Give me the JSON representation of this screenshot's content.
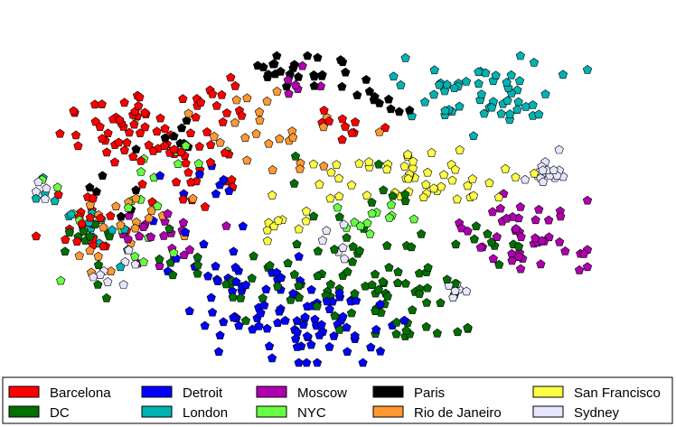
{
  "chart_data": {
    "type": "scatter",
    "marker": "pentagon",
    "grid": false,
    "legend_placement": "bottom",
    "series": [
      {
        "name": "Barcelona",
        "color": "#ff0000",
        "clusters": [
          {
            "cx": 140,
            "cy": 140,
            "sx": 40,
            "sy": 20,
            "n": 45
          },
          {
            "cx": 250,
            "cy": 110,
            "sx": 25,
            "sy": 15,
            "n": 15
          },
          {
            "cx": 200,
            "cy": 190,
            "sx": 40,
            "sy": 25,
            "n": 30
          },
          {
            "cx": 95,
            "cy": 250,
            "sx": 25,
            "sy": 25,
            "n": 20
          },
          {
            "cx": 380,
            "cy": 140,
            "sx": 20,
            "sy": 10,
            "n": 10
          }
        ]
      },
      {
        "name": "DC",
        "color": "#007000",
        "clusters": [
          {
            "cx": 420,
            "cy": 320,
            "sx": 60,
            "sy": 35,
            "n": 80
          },
          {
            "cx": 250,
            "cy": 300,
            "sx": 40,
            "sy": 20,
            "n": 18
          },
          {
            "cx": 100,
            "cy": 270,
            "sx": 20,
            "sy": 25,
            "n": 12
          },
          {
            "cx": 540,
            "cy": 270,
            "sx": 20,
            "sy": 10,
            "n": 8
          },
          {
            "cx": 400,
            "cy": 220,
            "sx": 30,
            "sy": 20,
            "n": 10
          }
        ]
      },
      {
        "name": "Detroit",
        "color": "#0000ff",
        "clusters": [
          {
            "cx": 340,
            "cy": 360,
            "sx": 45,
            "sy": 25,
            "n": 70
          },
          {
            "cx": 270,
            "cy": 310,
            "sx": 40,
            "sy": 20,
            "n": 25
          },
          {
            "cx": 210,
            "cy": 230,
            "sx": 25,
            "sy": 25,
            "n": 12
          }
        ]
      },
      {
        "name": "London",
        "color": "#00b3b3",
        "clusters": [
          {
            "cx": 530,
            "cy": 100,
            "sx": 50,
            "sy": 20,
            "n": 55
          },
          {
            "cx": 110,
            "cy": 260,
            "sx": 20,
            "sy": 20,
            "n": 10
          },
          {
            "cx": 60,
            "cy": 225,
            "sx": 15,
            "sy": 12,
            "n": 6
          }
        ]
      },
      {
        "name": "Moscow",
        "color": "#b000b0",
        "clusters": [
          {
            "cx": 590,
            "cy": 260,
            "sx": 35,
            "sy": 18,
            "n": 45
          },
          {
            "cx": 180,
            "cy": 255,
            "sx": 40,
            "sy": 20,
            "n": 20
          },
          {
            "cx": 340,
            "cy": 90,
            "sx": 20,
            "sy": 10,
            "n": 6
          }
        ]
      },
      {
        "name": "NYC",
        "color": "#66ff44",
        "clusters": [
          {
            "cx": 410,
            "cy": 240,
            "sx": 25,
            "sy": 15,
            "n": 12
          },
          {
            "cx": 150,
            "cy": 240,
            "sx": 50,
            "sy": 40,
            "n": 16
          },
          {
            "cx": 200,
            "cy": 190,
            "sx": 30,
            "sy": 20,
            "n": 8
          }
        ]
      },
      {
        "name": "Paris",
        "color": "#000000",
        "clusters": [
          {
            "cx": 330,
            "cy": 75,
            "sx": 25,
            "sy": 10,
            "n": 25
          },
          {
            "cx": 420,
            "cy": 115,
            "sx": 20,
            "sy": 10,
            "n": 10
          },
          {
            "cx": 180,
            "cy": 160,
            "sx": 20,
            "sy": 15,
            "n": 8
          },
          {
            "cx": 130,
            "cy": 210,
            "sx": 20,
            "sy": 15,
            "n": 6
          }
        ]
      },
      {
        "name": "Rio de Janeiro",
        "color": "#ff9933",
        "clusters": [
          {
            "cx": 300,
            "cy": 150,
            "sx": 40,
            "sy": 25,
            "n": 25
          },
          {
            "cx": 170,
            "cy": 240,
            "sx": 30,
            "sy": 20,
            "n": 12
          },
          {
            "cx": 110,
            "cy": 285,
            "sx": 20,
            "sy": 15,
            "n": 8
          }
        ]
      },
      {
        "name": "San Francisco",
        "color": "#ffff44",
        "clusters": [
          {
            "cx": 460,
            "cy": 195,
            "sx": 45,
            "sy": 15,
            "n": 50
          },
          {
            "cx": 300,
            "cy": 240,
            "sx": 30,
            "sy": 20,
            "n": 10
          }
        ]
      },
      {
        "name": "Sydney",
        "color": "#e6e6ff",
        "clusters": [
          {
            "cx": 605,
            "cy": 190,
            "sx": 10,
            "sy": 8,
            "n": 18
          },
          {
            "cx": 130,
            "cy": 300,
            "sx": 25,
            "sy": 15,
            "n": 8
          },
          {
            "cx": 500,
            "cy": 320,
            "sx": 15,
            "sy": 6,
            "n": 6
          },
          {
            "cx": 370,
            "cy": 265,
            "sx": 15,
            "sy": 10,
            "n": 6
          },
          {
            "cx": 45,
            "cy": 215,
            "sx": 8,
            "sy": 8,
            "n": 4
          }
        ]
      }
    ]
  }
}
